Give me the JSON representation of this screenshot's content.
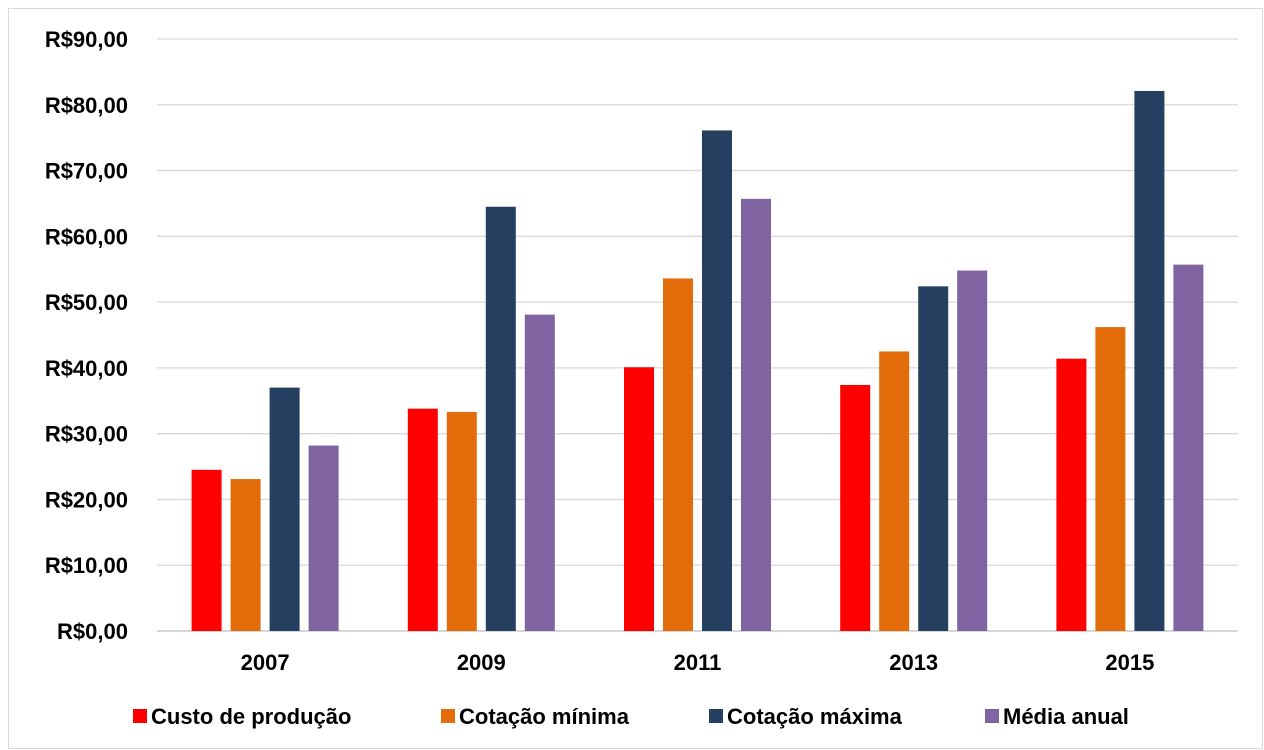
{
  "chart_data": {
    "type": "bar",
    "title": "",
    "xlabel": "",
    "ylabel": "",
    "categories": [
      "2007",
      "2009",
      "2011",
      "2013",
      "2015"
    ],
    "ylim": [
      0,
      90
    ],
    "yticks": [
      {
        "value": 0,
        "label": "R$0,00"
      },
      {
        "value": 10,
        "label": "R$10,00"
      },
      {
        "value": 20,
        "label": "R$20,00"
      },
      {
        "value": 30,
        "label": "R$30,00"
      },
      {
        "value": 40,
        "label": "R$40,00"
      },
      {
        "value": 50,
        "label": "R$50,00"
      },
      {
        "value": 60,
        "label": "R$60,00"
      },
      {
        "value": 70,
        "label": "R$70,00"
      },
      {
        "value": 80,
        "label": "R$80,00"
      },
      {
        "value": 90,
        "label": "R$90,00"
      }
    ],
    "grid": true,
    "legend_position": "bottom",
    "series": [
      {
        "name": "Custo de produção",
        "color": "#ff0000",
        "values": [
          24.5,
          33.8,
          40.1,
          37.4,
          41.4
        ]
      },
      {
        "name": "Cotação mínima",
        "color": "#e36c0a",
        "values": [
          23.1,
          33.3,
          53.6,
          42.5,
          46.2
        ]
      },
      {
        "name": "Cotação máxima",
        "color": "#243f60",
        "values": [
          37.0,
          64.5,
          76.1,
          52.4,
          82.1
        ]
      },
      {
        "name": "Média anual",
        "color": "#8064a2",
        "values": [
          28.2,
          48.1,
          65.7,
          54.8,
          55.7
        ]
      }
    ]
  }
}
